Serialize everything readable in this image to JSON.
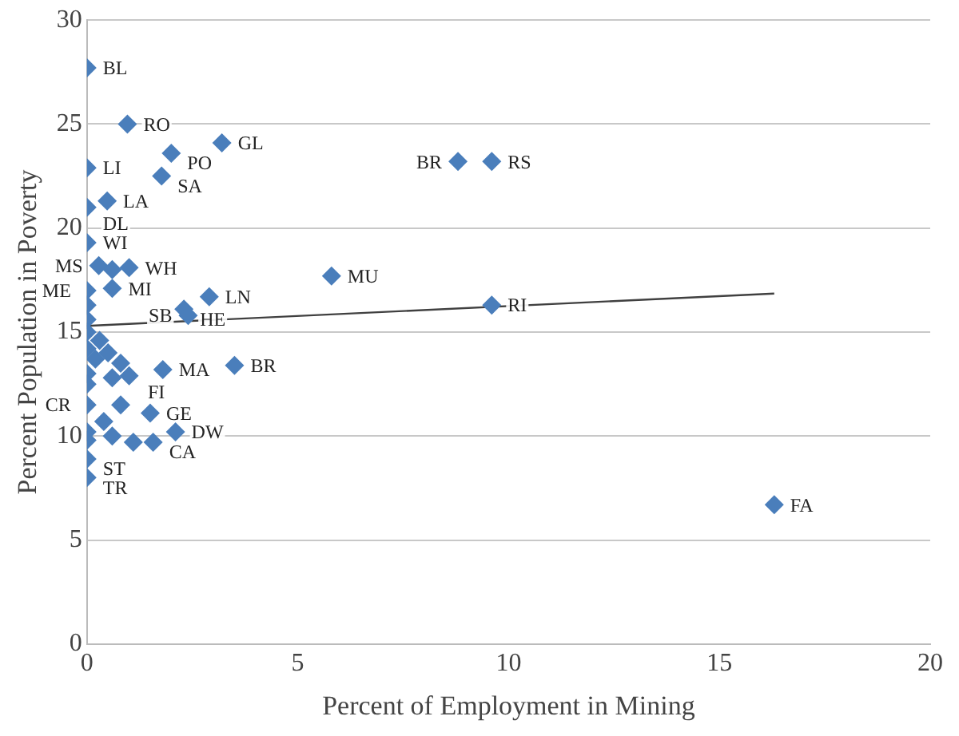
{
  "chart_data": {
    "type": "scatter",
    "xlabel": "Percent of Employment in Mining",
    "ylabel": "Percent Population in Poverty",
    "xlim": [
      0,
      20
    ],
    "xticks": [
      0,
      5,
      10,
      15,
      20
    ],
    "ylim": [
      0,
      30
    ],
    "yticks": [
      0,
      5,
      10,
      15,
      20,
      25,
      30
    ],
    "grid": "y",
    "legend": false,
    "marker": "diamond",
    "series": [
      {
        "type": "scatter",
        "color": "#4a7ebb",
        "x": [
          0,
          0.96,
          2.0,
          3.2,
          0,
          1.77,
          0,
          0.48,
          0,
          5.8,
          8.8,
          9.6,
          9.6,
          16.3,
          3.5,
          2.9,
          2.3,
          2.4,
          1.8,
          1.0,
          0.28,
          0.6,
          0,
          0.6,
          0,
          0.8,
          1.5,
          2.1,
          1.57,
          0,
          0,
          0,
          0,
          0,
          0.3,
          0,
          0.5,
          0.2,
          0.8,
          0,
          0.6,
          1.0,
          0,
          0.4,
          0,
          0,
          0.6,
          1.1
        ],
        "values": [
          27.7,
          25.0,
          23.6,
          24.1,
          22.9,
          22.5,
          21.0,
          21.3,
          19.3,
          17.7,
          23.2,
          23.2,
          16.3,
          6.7,
          13.4,
          16.7,
          16.1,
          15.8,
          13.2,
          18.1,
          18.2,
          18.0,
          17.0,
          17.1,
          11.5,
          11.5,
          11.1,
          10.2,
          9.7,
          8.9,
          8.0,
          16.3,
          15.6,
          15.0,
          14.6,
          14.2,
          14.0,
          13.7,
          13.5,
          13.0,
          12.8,
          12.9,
          12.5,
          10.7,
          10.2,
          9.8,
          10.0,
          9.7
        ],
        "value_labels": [
          "BL",
          "RO",
          "PO",
          "GL",
          "LI",
          "SA",
          "DL",
          "LA",
          "WI",
          "MU",
          "BR",
          "RS",
          "RI",
          "FA",
          "BR",
          "LN",
          "HE",
          "SB",
          "MA",
          "WH",
          "MS",
          null,
          "ME",
          "MI",
          "CR",
          "FI",
          "GE",
          "DW",
          "CA",
          "ST",
          "TR",
          null,
          null,
          null,
          null,
          null,
          null,
          null,
          null,
          null,
          null,
          null,
          null,
          null,
          null,
          null,
          null,
          null
        ]
      },
      {
        "type": "line",
        "color": "#404040",
        "marker": "none",
        "x": [
          0,
          16.3
        ],
        "values": [
          15.3,
          16.85
        ]
      }
    ]
  }
}
